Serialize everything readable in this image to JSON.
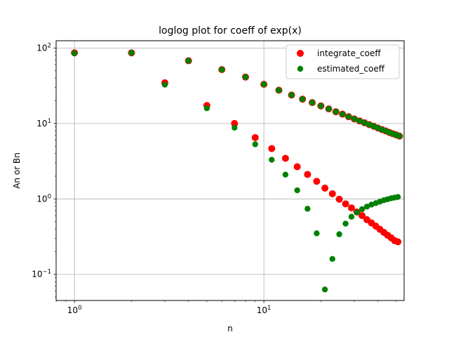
{
  "chart_data": {
    "type": "scatter",
    "title": "loglog plot for coeff of exp(x)",
    "xlabel": "n",
    "ylabel": "An or Bn",
    "xscale": "log",
    "yscale": "log",
    "xlim": [
      0.8,
      55
    ],
    "ylim": [
      0.045,
      125
    ],
    "xticks": [
      {
        "value": 1,
        "base": "10",
        "exp": "0"
      },
      {
        "value": 10,
        "base": "10",
        "exp": "1"
      }
    ],
    "yticks": [
      {
        "value": 0.1,
        "base": "10",
        "exp": "−1"
      },
      {
        "value": 1,
        "base": "10",
        "exp": "0"
      },
      {
        "value": 10,
        "base": "10",
        "exp": "1"
      },
      {
        "value": 100,
        "base": "10",
        "exp": "2"
      }
    ],
    "grid": true,
    "legend_position": "top-right",
    "series": [
      {
        "name": "integrate_coeff",
        "color": "#ff0000",
        "marker_size": "large",
        "points": [
          [
            1,
            86.4
          ],
          [
            2,
            86.4
          ],
          [
            3,
            34.6
          ],
          [
            4,
            67.8
          ],
          [
            5,
            17.3
          ],
          [
            6,
            51.8
          ],
          [
            7,
            10.0
          ],
          [
            8,
            41.2
          ],
          [
            9,
            6.5
          ],
          [
            10,
            33.0
          ],
          [
            11,
            4.65
          ],
          [
            12,
            27.6
          ],
          [
            13,
            3.45
          ],
          [
            14,
            23.8
          ],
          [
            15,
            2.67
          ],
          [
            16,
            21.0
          ],
          [
            17,
            2.11
          ],
          [
            18,
            18.9
          ],
          [
            19,
            1.71
          ],
          [
            20,
            17.1
          ],
          [
            21,
            1.39
          ],
          [
            22,
            15.6
          ],
          [
            23,
            1.17
          ],
          [
            24,
            14.3
          ],
          [
            25,
            0.99
          ],
          [
            26,
            13.3
          ],
          [
            27,
            0.86
          ],
          [
            28,
            12.3
          ],
          [
            29,
            0.76
          ],
          [
            30,
            11.5
          ],
          [
            31,
            0.67
          ],
          [
            32,
            10.8
          ],
          [
            33,
            0.6
          ],
          [
            34,
            10.2
          ],
          [
            35,
            0.53
          ],
          [
            36,
            9.65
          ],
          [
            37,
            0.48
          ],
          [
            38,
            9.2
          ],
          [
            39,
            0.435
          ],
          [
            40,
            8.7
          ],
          [
            41,
            0.395
          ],
          [
            42,
            8.3
          ],
          [
            43,
            0.36
          ],
          [
            44,
            7.95
          ],
          [
            45,
            0.33
          ],
          [
            46,
            7.6
          ],
          [
            47,
            0.305
          ],
          [
            48,
            7.3
          ],
          [
            49,
            0.28
          ],
          [
            50,
            7.05
          ],
          [
            51,
            0.27
          ],
          [
            52,
            6.8
          ]
        ]
      },
      {
        "name": "estimated_coeff",
        "color": "#008000",
        "marker_size": "small",
        "points": [
          [
            1,
            85.0
          ],
          [
            2,
            86.4
          ],
          [
            3,
            32.7
          ],
          [
            4,
            67.8
          ],
          [
            5,
            15.9
          ],
          [
            6,
            51.8
          ],
          [
            7,
            8.8
          ],
          [
            8,
            41.2
          ],
          [
            9,
            5.3
          ],
          [
            10,
            33.0
          ],
          [
            11,
            3.3
          ],
          [
            12,
            27.6
          ],
          [
            13,
            2.1
          ],
          [
            14,
            23.8
          ],
          [
            15,
            1.3
          ],
          [
            16,
            21.0
          ],
          [
            17,
            0.74
          ],
          [
            18,
            18.9
          ],
          [
            19,
            0.35
          ],
          [
            20,
            17.1
          ],
          [
            21,
            0.063
          ],
          [
            22,
            15.6
          ],
          [
            23,
            0.16
          ],
          [
            24,
            14.3
          ],
          [
            25,
            0.34
          ],
          [
            26,
            13.3
          ],
          [
            27,
            0.47
          ],
          [
            28,
            12.3
          ],
          [
            29,
            0.58
          ],
          [
            30,
            11.5
          ],
          [
            31,
            0.66
          ],
          [
            32,
            10.8
          ],
          [
            33,
            0.73
          ],
          [
            34,
            10.2
          ],
          [
            35,
            0.79
          ],
          [
            36,
            9.65
          ],
          [
            37,
            0.84
          ],
          [
            38,
            9.2
          ],
          [
            39,
            0.88
          ],
          [
            40,
            8.7
          ],
          [
            41,
            0.92
          ],
          [
            42,
            8.3
          ],
          [
            43,
            0.96
          ],
          [
            44,
            7.95
          ],
          [
            45,
            0.99
          ],
          [
            46,
            7.6
          ],
          [
            47,
            1.02
          ],
          [
            48,
            7.3
          ],
          [
            49,
            1.04
          ],
          [
            50,
            7.05
          ],
          [
            51,
            1.06
          ],
          [
            52,
            6.8
          ]
        ]
      }
    ]
  }
}
